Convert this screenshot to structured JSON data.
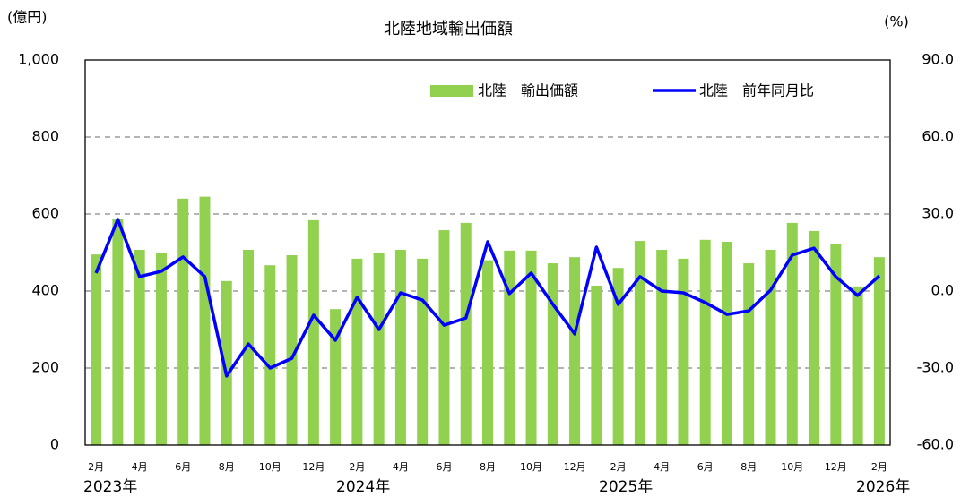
{
  "chart_data": {
    "type": "bar_line",
    "title": "北陸地域輸出価額",
    "y_unit": "(億円)",
    "y2_unit": "(%)",
    "categories": [
      "2月",
      null,
      "4月",
      null,
      "6月",
      null,
      "8月",
      null,
      "10月",
      null,
      "12月",
      null,
      "2月",
      null,
      "4月",
      null,
      "6月",
      null,
      "8月",
      null,
      "10月",
      null,
      "12月",
      null,
      "2月",
      null,
      "4月",
      null,
      "6月",
      null,
      "8月",
      null,
      "10月",
      null,
      "12月",
      null,
      "2月"
    ],
    "years": [
      "2023年",
      "2024年",
      "2025年",
      "2026年"
    ],
    "series": [
      {
        "name": "北陸　輸出価額",
        "type": "bar",
        "color": "#92d050",
        "values": [
          495,
          586,
          507,
          500,
          640,
          645,
          426,
          507,
          467,
          493,
          584,
          353,
          484,
          498,
          507,
          484,
          558,
          577,
          480,
          505,
          505,
          472,
          488,
          414,
          460,
          530,
          507,
          484,
          533,
          528,
          472,
          507,
          577,
          556,
          521,
          412,
          488
        ]
      },
      {
        "name": "北陸　前年同月比",
        "type": "line",
        "axis": "y2",
        "color": "#0000ff",
        "values": [
          7.0,
          27.9,
          5.6,
          7.7,
          13.3,
          5.6,
          -33.1,
          -20.6,
          -30.0,
          -26.2,
          -9.4,
          -19.2,
          -2.4,
          -15.0,
          -0.7,
          -3.5,
          -13.3,
          -10.5,
          19.2,
          -1.0,
          7.0,
          -5.2,
          -16.7,
          17.1,
          -5.2,
          5.6,
          0.0,
          -0.7,
          -4.5,
          -9.1,
          -7.7,
          0.3,
          14.0,
          16.7,
          5.6,
          -1.7,
          5.9
        ]
      }
    ],
    "ylim": [
      0,
      1000
    ],
    "yticks": [
      0,
      200,
      400,
      600,
      800,
      {
        "value": 1000,
        "label": "1,000"
      }
    ],
    "y2lim": [
      -60,
      90
    ],
    "y2ticks": [
      {
        "value": -60,
        "label": "-60.0"
      },
      {
        "value": -30,
        "label": "-30.0"
      },
      {
        "value": 0,
        "label": "0.0"
      },
      {
        "value": 30,
        "label": "30.0"
      },
      {
        "value": 60,
        "label": "60.0"
      },
      {
        "value": 90,
        "label": "90.0"
      }
    ],
    "grid": true
  }
}
